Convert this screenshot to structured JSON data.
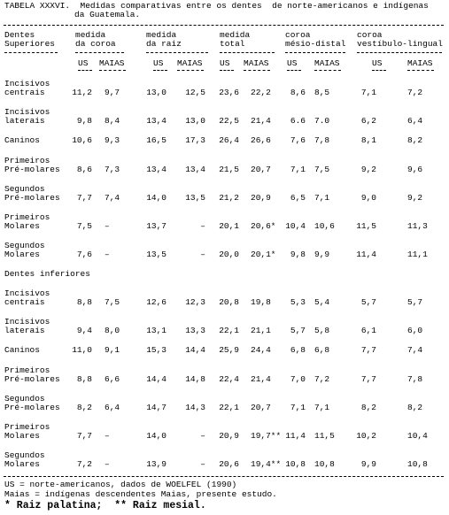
{
  "header": {
    "title": [
      "TABELA XXXVI.  Medidas comparativas entre os dentes  de norte-americanos e indígenas",
      "da Guatemala."
    ]
  },
  "table": {
    "stub_header": [
      "Dentes",
      "Superiores"
    ],
    "groups": [
      {
        "label": [
          "medida",
          "da coroa"
        ],
        "sub": [
          "US",
          "MAIAS"
        ]
      },
      {
        "label": [
          "medida",
          "da raiz"
        ],
        "sub": [
          "US",
          "MAIAS"
        ]
      },
      {
        "label": [
          "medida",
          "total"
        ],
        "sub": [
          "US",
          "MAIAS"
        ]
      },
      {
        "label": [
          "coroa",
          "mésio-distal"
        ],
        "sub": [
          "US",
          "MAIAS"
        ]
      },
      {
        "label": [
          "coroa",
          "vestíbulo-lingual"
        ],
        "sub": [
          "US",
          "MAIAS"
        ]
      }
    ],
    "sections": [
      {
        "rows": [
          {
            "label": [
              "Incisivos",
              "centrais"
            ],
            "cells": [
              "11,2",
              "9,7",
              "13,0",
              "12,5",
              "23,6",
              "22,2",
              "8,6",
              "8,5",
              "7,1",
              "7,2"
            ]
          },
          {
            "label": [
              "Incisivos",
              "laterais"
            ],
            "cells": [
              "9,8",
              "8,4",
              "13,4",
              "13,0",
              "22,5",
              "21,4",
              "6.6",
              "7.0",
              "6,2",
              "6,4"
            ]
          },
          {
            "label": [
              "Caninos"
            ],
            "cells": [
              "10,6",
              "9,3",
              "16,5",
              "17,3",
              "26,4",
              "26,6",
              "7,6",
              "7,8",
              "8,1",
              "8,2"
            ]
          },
          {
            "label": [
              "Primeiros",
              "Pré-molares"
            ],
            "cells": [
              "8,6",
              "7,3",
              "13,4",
              "13,4",
              "21,5",
              "20,7",
              "7,1",
              "7,5",
              "9,2",
              "9,6"
            ]
          },
          {
            "label": [
              "Segundos",
              "Pré-molares"
            ],
            "cells": [
              "7,7",
              "7,4",
              "14,0",
              "13,5",
              "21,2",
              "20,9",
              "6,5",
              "7,1",
              "9,0",
              "9,2"
            ]
          },
          {
            "label": [
              "Primeiros",
              "Molares"
            ],
            "cells": [
              "7,5",
              "–",
              "13,7",
              "–",
              "20,1",
              "20,6*",
              "10,4",
              "10,6",
              "11,5",
              "11,3"
            ]
          },
          {
            "label": [
              "Segundos",
              "Molares"
            ],
            "cells": [
              "7,6",
              "–",
              "13,5",
              "–",
              "20,0",
              "20,1*",
              "9,8",
              "9,9",
              "11,4",
              "11,1"
            ]
          }
        ]
      },
      {
        "heading": "Dentes inferiores",
        "rows": [
          {
            "label": [
              "Incisivos",
              "centrais"
            ],
            "cells": [
              "8,8",
              "7,5",
              "12,6",
              "12,3",
              "20,8",
              "19,8",
              "5,3",
              "5,4",
              "5,7",
              "5,7"
            ]
          },
          {
            "label": [
              "Incisivos",
              "laterais"
            ],
            "cells": [
              "9,4",
              "8,0",
              "13,1",
              "13,3",
              "22,1",
              "21,1",
              "5,7",
              "5,8",
              "6,1",
              "6,0"
            ]
          },
          {
            "label": [
              "Caninos"
            ],
            "cells": [
              "11,0",
              "9,1",
              "15,3",
              "14,4",
              "25,9",
              "24,4",
              "6,8",
              "6,8",
              "7,7",
              "7,4"
            ]
          },
          {
            "label": [
              "Primeiros",
              "Pré-molares"
            ],
            "cells": [
              "8,8",
              "6,6",
              "14,4",
              "14,8",
              "22,4",
              "21,4",
              "7,0",
              "7,2",
              "7,7",
              "7,8"
            ]
          },
          {
            "label": [
              "Segundos",
              "Pré-molares"
            ],
            "cells": [
              "8,2",
              "6,4",
              "14,7",
              "14,3",
              "22,1",
              "20,7",
              "7,1",
              "7,1",
              "8,2",
              "8,2"
            ]
          },
          {
            "label": [
              "Primeiros",
              "Molares"
            ],
            "cells": [
              "7,7",
              "–",
              "14,0",
              "–",
              "20,9",
              "19,7**",
              "11,4",
              "11,5",
              "10,2",
              "10,4"
            ]
          },
          {
            "label": [
              "Segundos",
              "Molares"
            ],
            "cells": [
              "7,2",
              "–",
              "13,9",
              "–",
              "20,6",
              "19,4**",
              "10,8",
              "10,8",
              "9,9",
              "10,8"
            ]
          }
        ]
      }
    ]
  },
  "footnotes": [
    "US = norte-americanos, dados de WOELFEL (1990)",
    "Maias = indígenas descendentes Maias, presente estudo.",
    "* Raiz palatina;  ** Raiz mesial."
  ]
}
